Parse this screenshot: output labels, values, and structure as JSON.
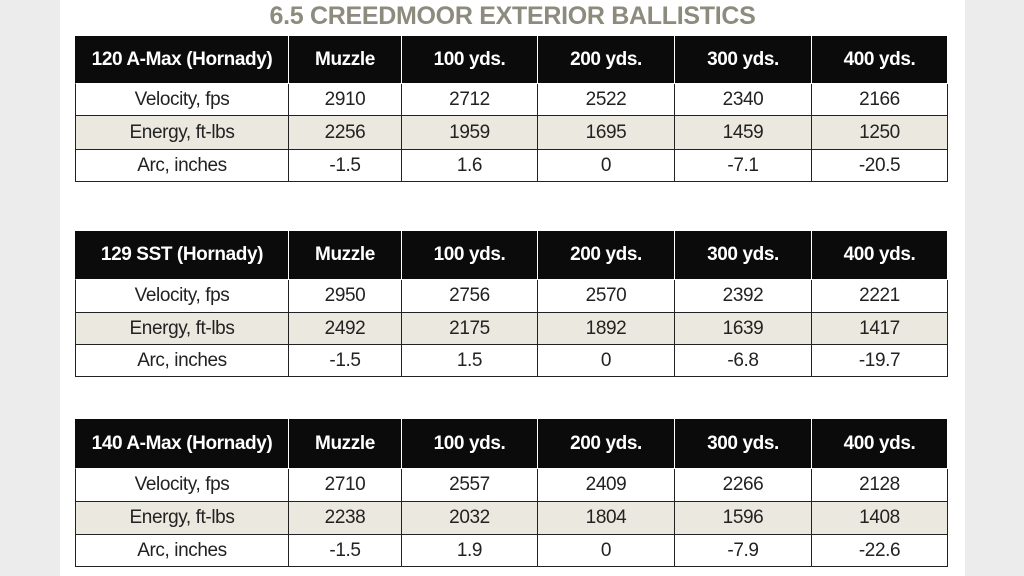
{
  "title": "6.5 CREEDMOOR EXTERIOR BALLISTICS",
  "tables": [
    {
      "header": [
        "120 A-Max (Hornady)",
        "Muzzle",
        "100 yds.",
        "200 yds.",
        "300 yds.",
        "400 yds."
      ],
      "rows": [
        [
          "Velocity, fps",
          2910,
          2712,
          2522,
          2340,
          2166
        ],
        [
          "Energy, ft-lbs",
          2256,
          1959,
          1695,
          1459,
          1250
        ],
        [
          "Arc, inches",
          -1.5,
          1.6,
          0,
          -7.1,
          -20.5
        ]
      ]
    },
    {
      "header": [
        "129 SST (Hornady)",
        "Muzzle",
        "100 yds.",
        "200 yds.",
        "300 yds.",
        "400 yds."
      ],
      "rows": [
        [
          "Velocity, fps",
          2950,
          2756,
          2570,
          2392,
          2221
        ],
        [
          "Energy, ft-lbs",
          2492,
          2175,
          1892,
          1639,
          1417
        ],
        [
          "Arc, inches",
          -1.5,
          1.5,
          0,
          -6.8,
          -19.7
        ]
      ]
    },
    {
      "header": [
        "140 A-Max (Hornady)",
        "Muzzle",
        "100 yds.",
        "200 yds.",
        "300 yds.",
        "400 yds."
      ],
      "rows": [
        [
          "Velocity, fps",
          2710,
          2557,
          2409,
          2266,
          2128
        ],
        [
          "Energy, ft-lbs",
          2238,
          2032,
          1804,
          1596,
          1408
        ],
        [
          "Arc, inches",
          -1.5,
          1.9,
          0,
          -7.9,
          -22.6
        ]
      ]
    }
  ]
}
